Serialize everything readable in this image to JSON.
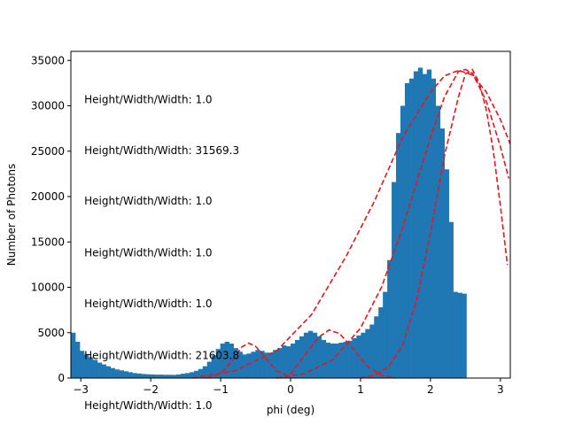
{
  "chart_data": {
    "type": "bar",
    "title": "",
    "xlabel": "phi (deg)",
    "ylabel": "Number of Photons",
    "xlim": [
      -3.1416,
      3.1416
    ],
    "ylim": [
      0,
      36000
    ],
    "grid": false,
    "legend": "none",
    "xticks": [
      -3,
      -2,
      -1,
      0,
      1,
      2,
      3
    ],
    "xtick_labels": [
      "−3",
      "−2",
      "−1",
      "0",
      "1",
      "2",
      "3"
    ],
    "yticks": [
      0,
      5000,
      10000,
      15000,
      20000,
      25000,
      30000,
      35000
    ],
    "ytick_labels": [
      "0",
      "5000",
      "10000",
      "15000",
      "20000",
      "25000",
      "30000",
      "35000"
    ],
    "histogram": {
      "color": "#1f77b4",
      "bin_start": -3.1416,
      "bin_width": 0.06283,
      "counts": [
        5000,
        4000,
        3000,
        2600,
        2300,
        2000,
        1700,
        1500,
        1300,
        1100,
        950,
        850,
        750,
        650,
        550,
        500,
        450,
        420,
        400,
        380,
        380,
        360,
        360,
        350,
        400,
        480,
        550,
        650,
        800,
        1000,
        1300,
        1800,
        2500,
        3200,
        3800,
        4000,
        3800,
        3300,
        2900,
        2600,
        2700,
        2900,
        3100,
        3000,
        2800,
        2800,
        3100,
        3300,
        3600,
        3500,
        3800,
        4200,
        4600,
        5000,
        5200,
        5000,
        4600,
        4200,
        3900,
        3800,
        3800,
        3900,
        4000,
        4100,
        4400,
        4700,
        5000,
        5400,
        5900,
        6800,
        7800,
        9500,
        13000,
        21600,
        27000,
        30000,
        32500,
        33000,
        33800,
        34200,
        33500,
        34000,
        33000,
        30000,
        27500,
        23000,
        17200,
        9500,
        9400,
        9300
      ]
    },
    "fit_curves": {
      "color": "#e8141e",
      "style": "dashed",
      "series": [
        {
          "x": [
            -1.2,
            -1.0,
            -0.8,
            -0.7,
            -0.6,
            -0.5,
            -0.4,
            -0.2,
            0.0
          ],
          "y": [
            0,
            500,
            2200,
            3400,
            3850,
            3500,
            2600,
            800,
            100
          ]
        },
        {
          "x": [
            0.0,
            0.2,
            0.4,
            0.55,
            0.7,
            0.9,
            1.1,
            1.3,
            1.5
          ],
          "y": [
            400,
            2500,
            4500,
            5300,
            4900,
            3200,
            1300,
            300,
            0
          ]
        },
        {
          "x": [
            -1.4,
            -0.8,
            -0.2,
            0.3,
            0.8,
            1.2,
            1.6,
            2.0,
            2.2,
            2.4,
            2.6,
            2.8,
            3.0,
            3.14
          ],
          "y": [
            0,
            800,
            3000,
            7000,
            13500,
            19500,
            26500,
            31500,
            33300,
            33900,
            33400,
            31500,
            28500,
            25800
          ]
        },
        {
          "x": [
            -0.2,
            0.2,
            0.6,
            1.0,
            1.3,
            1.6,
            1.8,
            2.0,
            2.2,
            2.4,
            2.5,
            2.6,
            2.8,
            3.0,
            3.12
          ],
          "y": [
            0,
            500,
            2000,
            5500,
            10000,
            16500,
            21500,
            26500,
            31000,
            33800,
            34000,
            33600,
            30500,
            25500,
            22000
          ]
        },
        {
          "x": [
            1.0,
            1.2,
            1.4,
            1.6,
            1.8,
            2.0,
            2.2,
            2.4,
            2.5,
            2.6,
            2.7,
            2.8,
            2.9,
            3.0,
            3.1
          ],
          "y": [
            0,
            300,
            1200,
            3600,
            8500,
            16000,
            24500,
            31000,
            33500,
            34000,
            32500,
            29500,
            25000,
            19000,
            12500
          ]
        }
      ]
    },
    "annotations": [
      {
        "text": "Height/Width/Width: 1.0",
        "x": -2.95,
        "y": 30300
      },
      {
        "text": "Height/Width/Width: 31569.3",
        "x": -2.95,
        "y": 24700
      },
      {
        "text": "Height/Width/Width: 1.0",
        "x": -2.95,
        "y": 19100
      },
      {
        "text": "Height/Width/Width: 1.0",
        "x": -2.95,
        "y": 13400
      },
      {
        "text": "Height/Width/Width: 1.0",
        "x": -2.95,
        "y": 7800
      },
      {
        "text": "Height/Width/Width: 21603.8",
        "x": -2.95,
        "y": 2100
      },
      {
        "text": "Height/Width/Width: 1.0",
        "x": -2.95,
        "y": -3400
      }
    ]
  }
}
